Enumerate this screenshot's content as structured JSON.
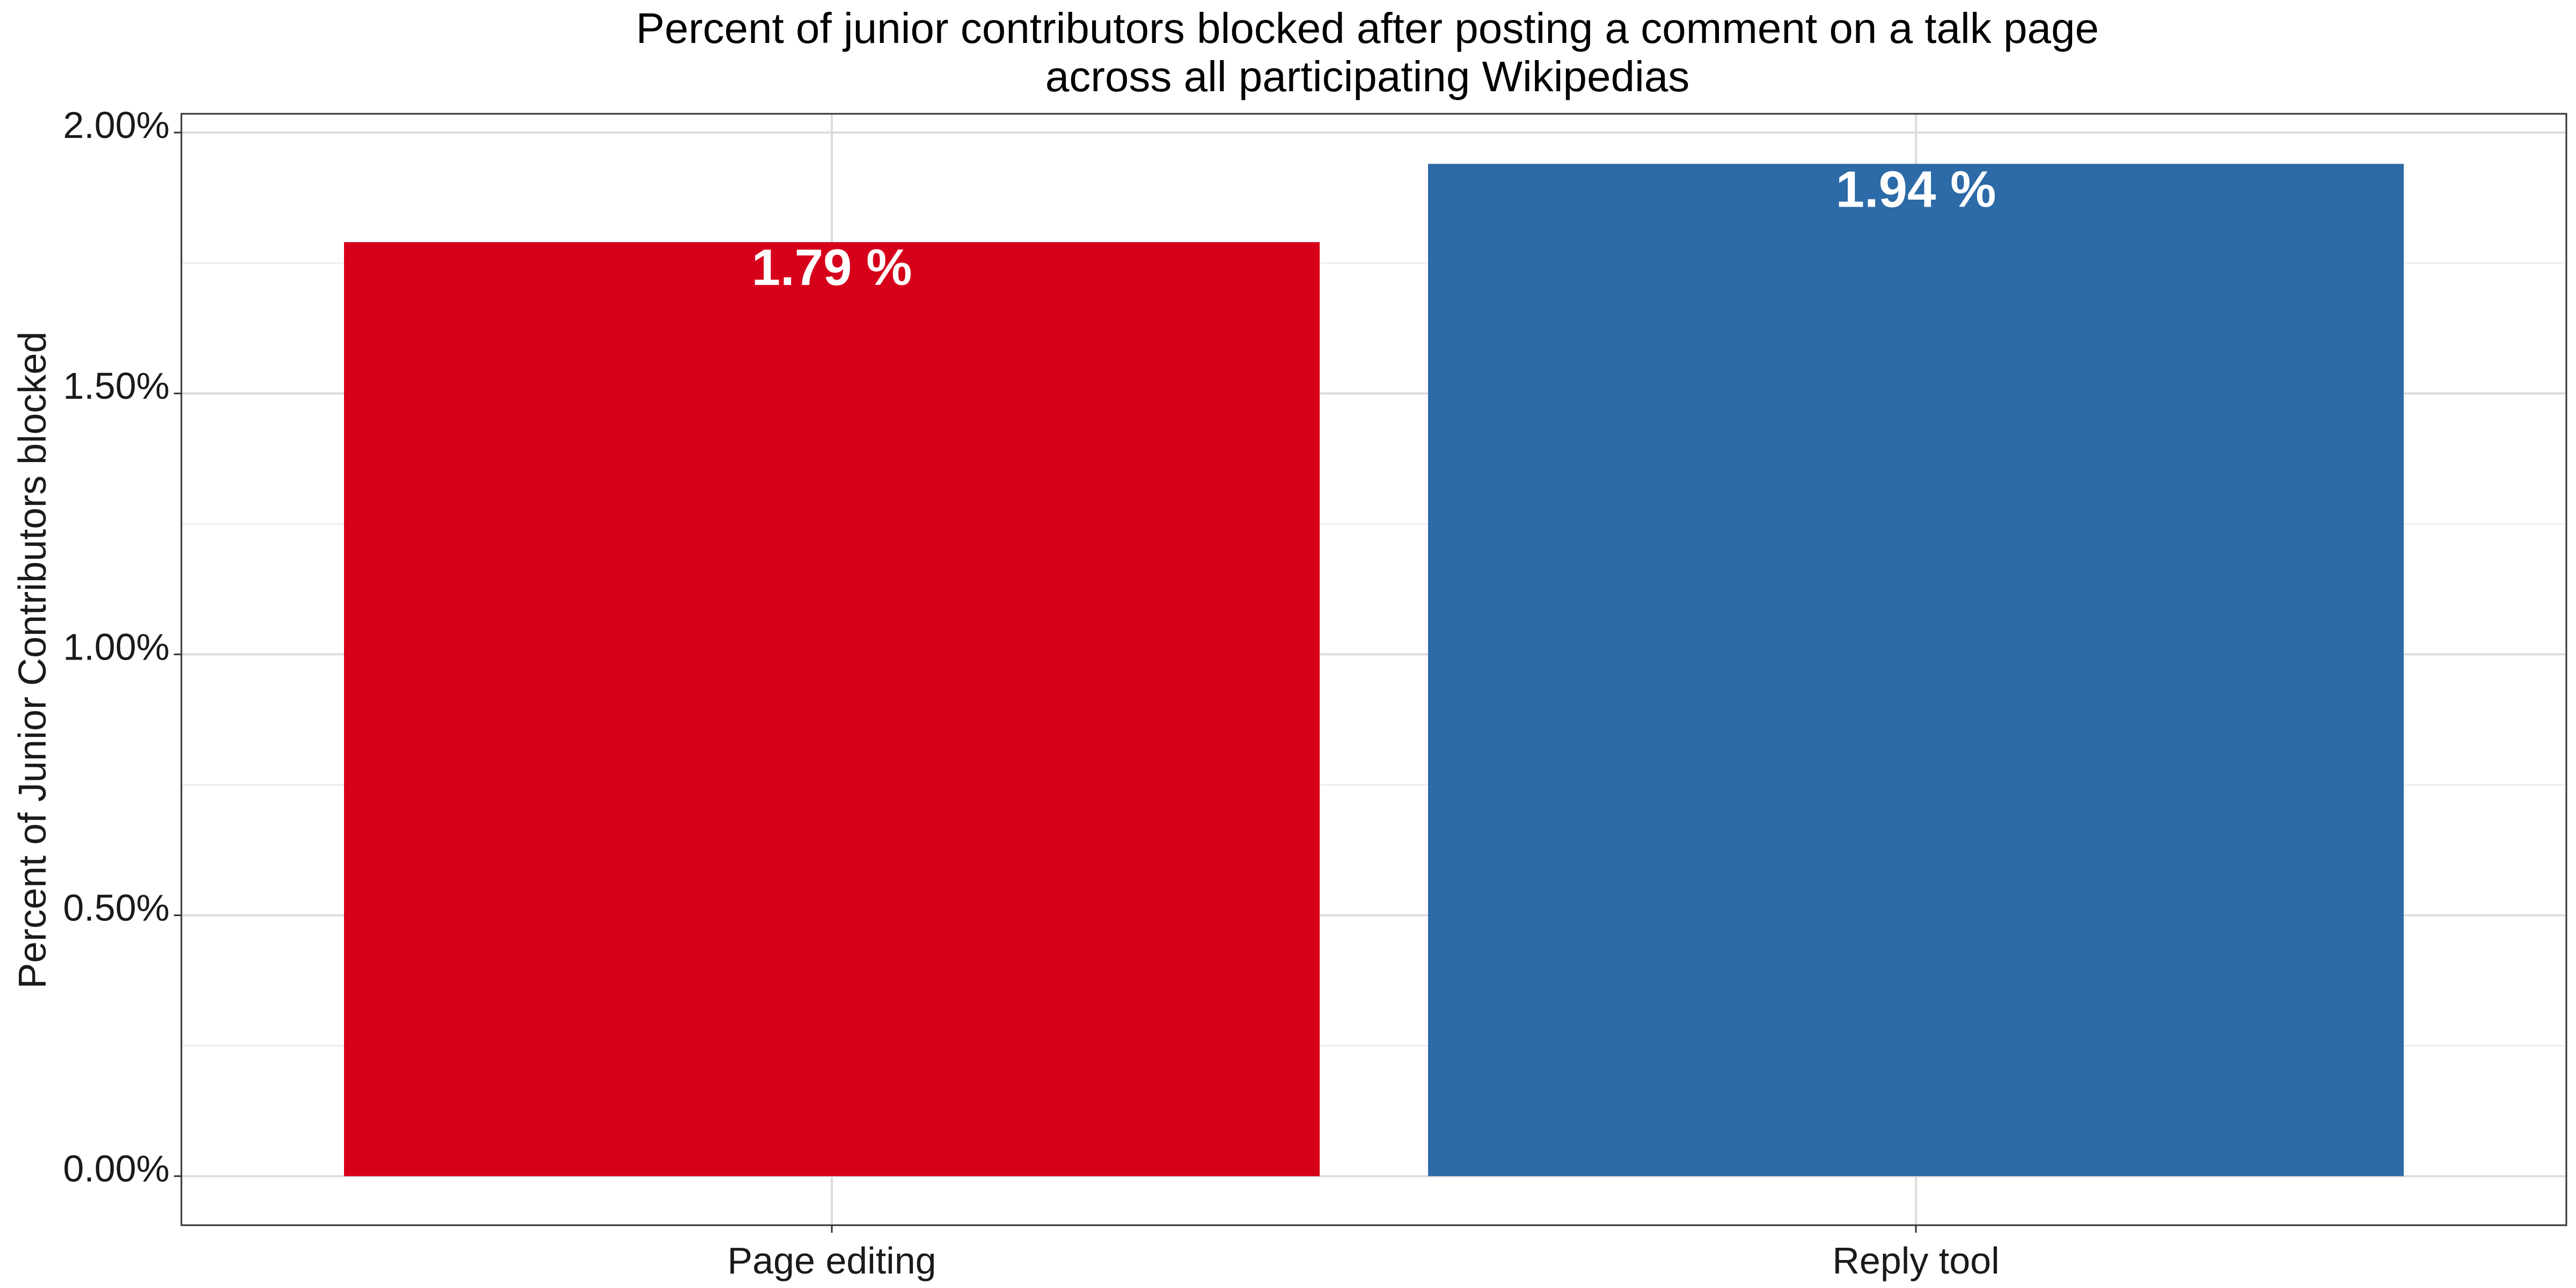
{
  "chart_data": {
    "type": "bar",
    "title": "Percent of junior contributors blocked after posting a comment on a talk page",
    "subtitle": "across all participating Wikipedias",
    "xlabel": "",
    "ylabel": "Percent of Junior Contributors blocked",
    "categories": [
      "Page editing",
      "Reply tool"
    ],
    "values": [
      1.79,
      1.94
    ],
    "data_labels": [
      "1.79 %",
      "1.94 %"
    ],
    "colors": [
      "#d7001a",
      "#2c6aa8"
    ],
    "ylim": [
      -0.094,
      2.036
    ],
    "y_ticks": [
      0,
      0.5,
      1.0,
      1.5,
      2.0
    ],
    "y_tick_labels": [
      "0.00%",
      "0.50%",
      "1.00%",
      "1.50%",
      "2.00%"
    ],
    "grid": true,
    "legend": "none"
  }
}
